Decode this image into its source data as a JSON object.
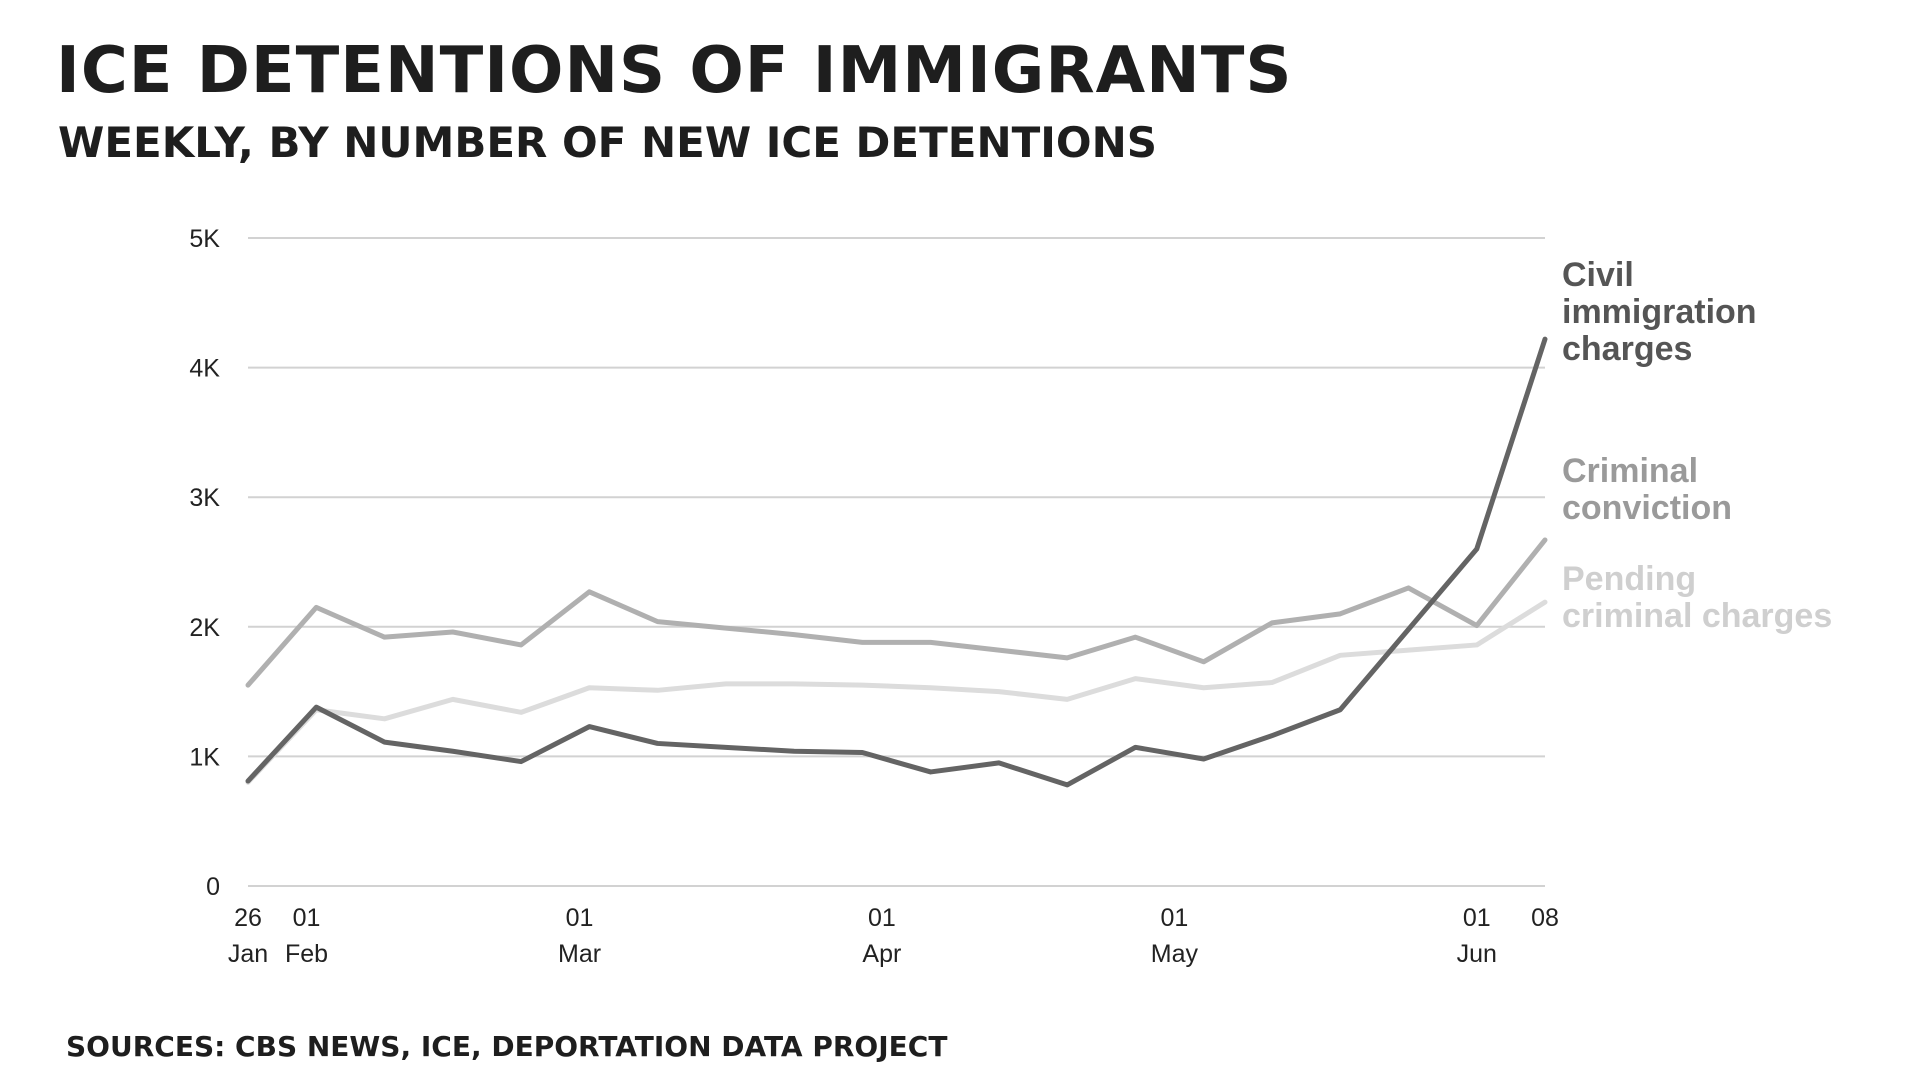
{
  "header": {
    "title": "ICE DETENTIONS OF IMMIGRANTS",
    "subtitle": "WEEKLY, BY NUMBER OF NEW ICE DETENTIONS"
  },
  "footer": {
    "source": "SOURCES: CBS NEWS, ICE, DEPORTATION DATA PROJECT"
  },
  "chart_data": {
    "type": "line",
    "title": "ICE DETENTIONS OF IMMIGRANTS",
    "subtitle": "WEEKLY, BY NUMBER OF NEW ICE DETENTIONS",
    "xlabel": "",
    "ylabel": "",
    "ylim": [
      0,
      5000
    ],
    "grid": true,
    "legend": "inline labels at right end of lines",
    "y_ticks": [
      {
        "value": 0,
        "label": "0"
      },
      {
        "value": 1000,
        "label": "1K"
      },
      {
        "value": 2000,
        "label": "2K"
      },
      {
        "value": 3000,
        "label": "3K"
      },
      {
        "value": 4000,
        "label": "4K"
      },
      {
        "value": 5000,
        "label": "5K"
      }
    ],
    "x_ticks": [
      {
        "date": "2025-01-26",
        "day": "26",
        "month": "Jan"
      },
      {
        "date": "2025-02-01",
        "day": "01",
        "month": "Feb"
      },
      {
        "date": "2025-03-01",
        "day": "01",
        "month": "Mar"
      },
      {
        "date": "2025-04-01",
        "day": "01",
        "month": "Apr"
      },
      {
        "date": "2025-05-01",
        "day": "01",
        "month": "May"
      },
      {
        "date": "2025-06-01",
        "day": "01",
        "month": "Jun"
      },
      {
        "date": "2025-06-08",
        "day": "08",
        "month": ""
      }
    ],
    "x": [
      "2025-01-26",
      "2025-02-02",
      "2025-02-09",
      "2025-02-16",
      "2025-02-23",
      "2025-03-02",
      "2025-03-09",
      "2025-03-16",
      "2025-03-23",
      "2025-03-30",
      "2025-04-06",
      "2025-04-13",
      "2025-04-20",
      "2025-04-27",
      "2025-05-04",
      "2025-05-11",
      "2025-05-18",
      "2025-05-25",
      "2025-06-01",
      "2025-06-08"
    ],
    "series": [
      {
        "name": "Criminal conviction",
        "color": "#b0b0b0",
        "label_lines": [
          "Criminal",
          "conviction"
        ],
        "values": [
          1550,
          2150,
          1920,
          1960,
          1860,
          2270,
          2040,
          1990,
          1940,
          1880,
          1880,
          1820,
          1760,
          1920,
          1730,
          2030,
          2100,
          2300,
          2010,
          2670
        ]
      },
      {
        "name": "Pending criminal charges",
        "color": "#dcdcdc",
        "label_lines": [
          "Pending",
          "criminal charges"
        ],
        "values": [
          800,
          1360,
          1290,
          1440,
          1340,
          1530,
          1510,
          1560,
          1560,
          1550,
          1530,
          1500,
          1440,
          1600,
          1530,
          1570,
          1780,
          1820,
          1860,
          2190
        ]
      },
      {
        "name": "Civil immigration charges",
        "color": "#646464",
        "label_lines": [
          "Civil",
          "immigration",
          "charges"
        ],
        "values": [
          810,
          1380,
          1110,
          1040,
          960,
          1230,
          1100,
          1070,
          1040,
          1030,
          880,
          950,
          780,
          1070,
          980,
          1160,
          1360,
          1980,
          2600,
          4220
        ]
      }
    ]
  }
}
